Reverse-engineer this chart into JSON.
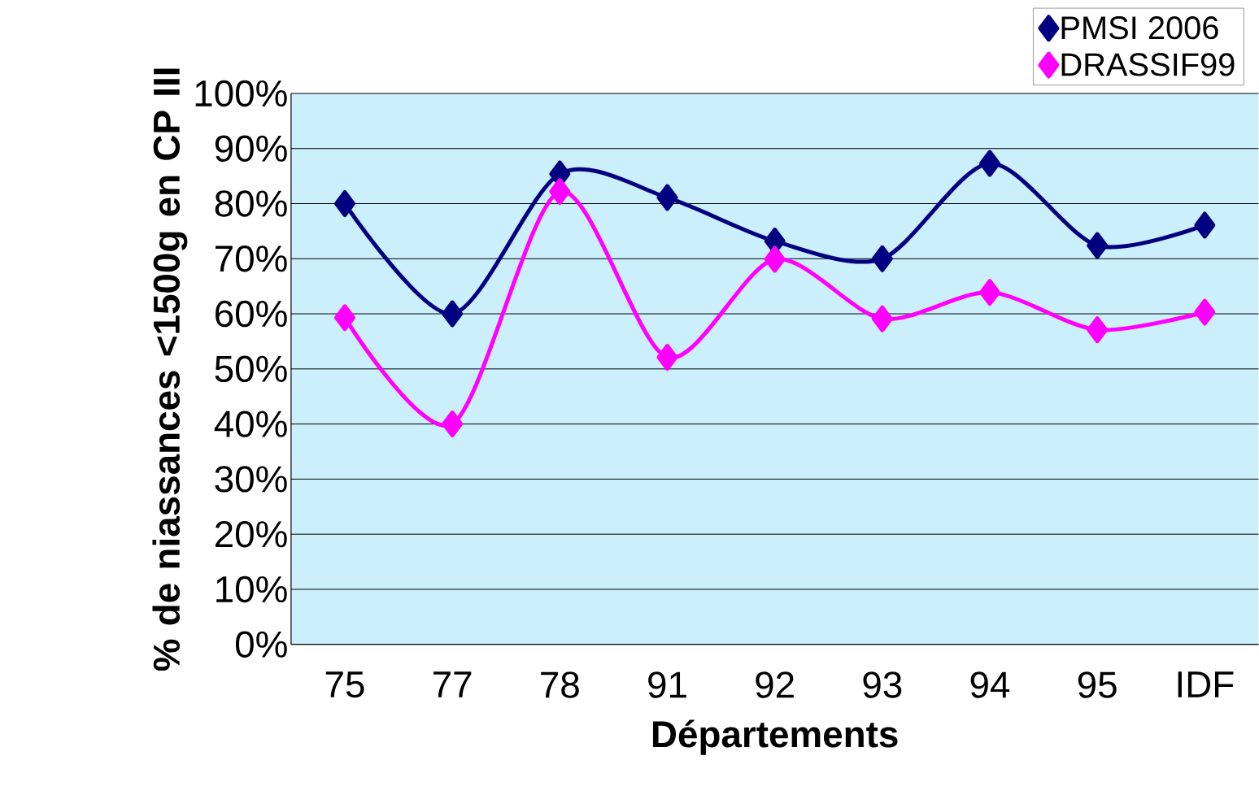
{
  "chart_data": {
    "type": "line",
    "xlabel": "Départements",
    "ylabel": "% de niassances <1500g en CP III",
    "categories": [
      "75",
      "77",
      "78",
      "91",
      "92",
      "93",
      "94",
      "95",
      "IDF"
    ],
    "series": [
      {
        "name": "PMSI 2006",
        "color": "#000080",
        "values": [
          80,
          60,
          85.4,
          81.1,
          73.2,
          70,
          87.3,
          72.4,
          76.1
        ]
      },
      {
        "name": "DRASSIF99",
        "color": "#ff00ff",
        "values": [
          59.3,
          40,
          82.2,
          52.1,
          69.9,
          59.1,
          63.9,
          57.1,
          60.3
        ]
      }
    ],
    "ylim": [
      0,
      100
    ],
    "yticks": [
      {
        "value": 0,
        "label": "0%"
      },
      {
        "value": 10,
        "label": "10%"
      },
      {
        "value": 20,
        "label": "20%"
      },
      {
        "value": 30,
        "label": "30%"
      },
      {
        "value": 40,
        "label": "40%"
      },
      {
        "value": 50,
        "label": "50%"
      },
      {
        "value": 60,
        "label": "60%"
      },
      {
        "value": 70,
        "label": "70%"
      },
      {
        "value": 80,
        "label": "80%"
      },
      {
        "value": 90,
        "label": "90%"
      },
      {
        "value": 100,
        "label": "100%"
      }
    ],
    "grid": "y",
    "legend": "top right",
    "marker": "diamond",
    "line_style": "solid"
  }
}
